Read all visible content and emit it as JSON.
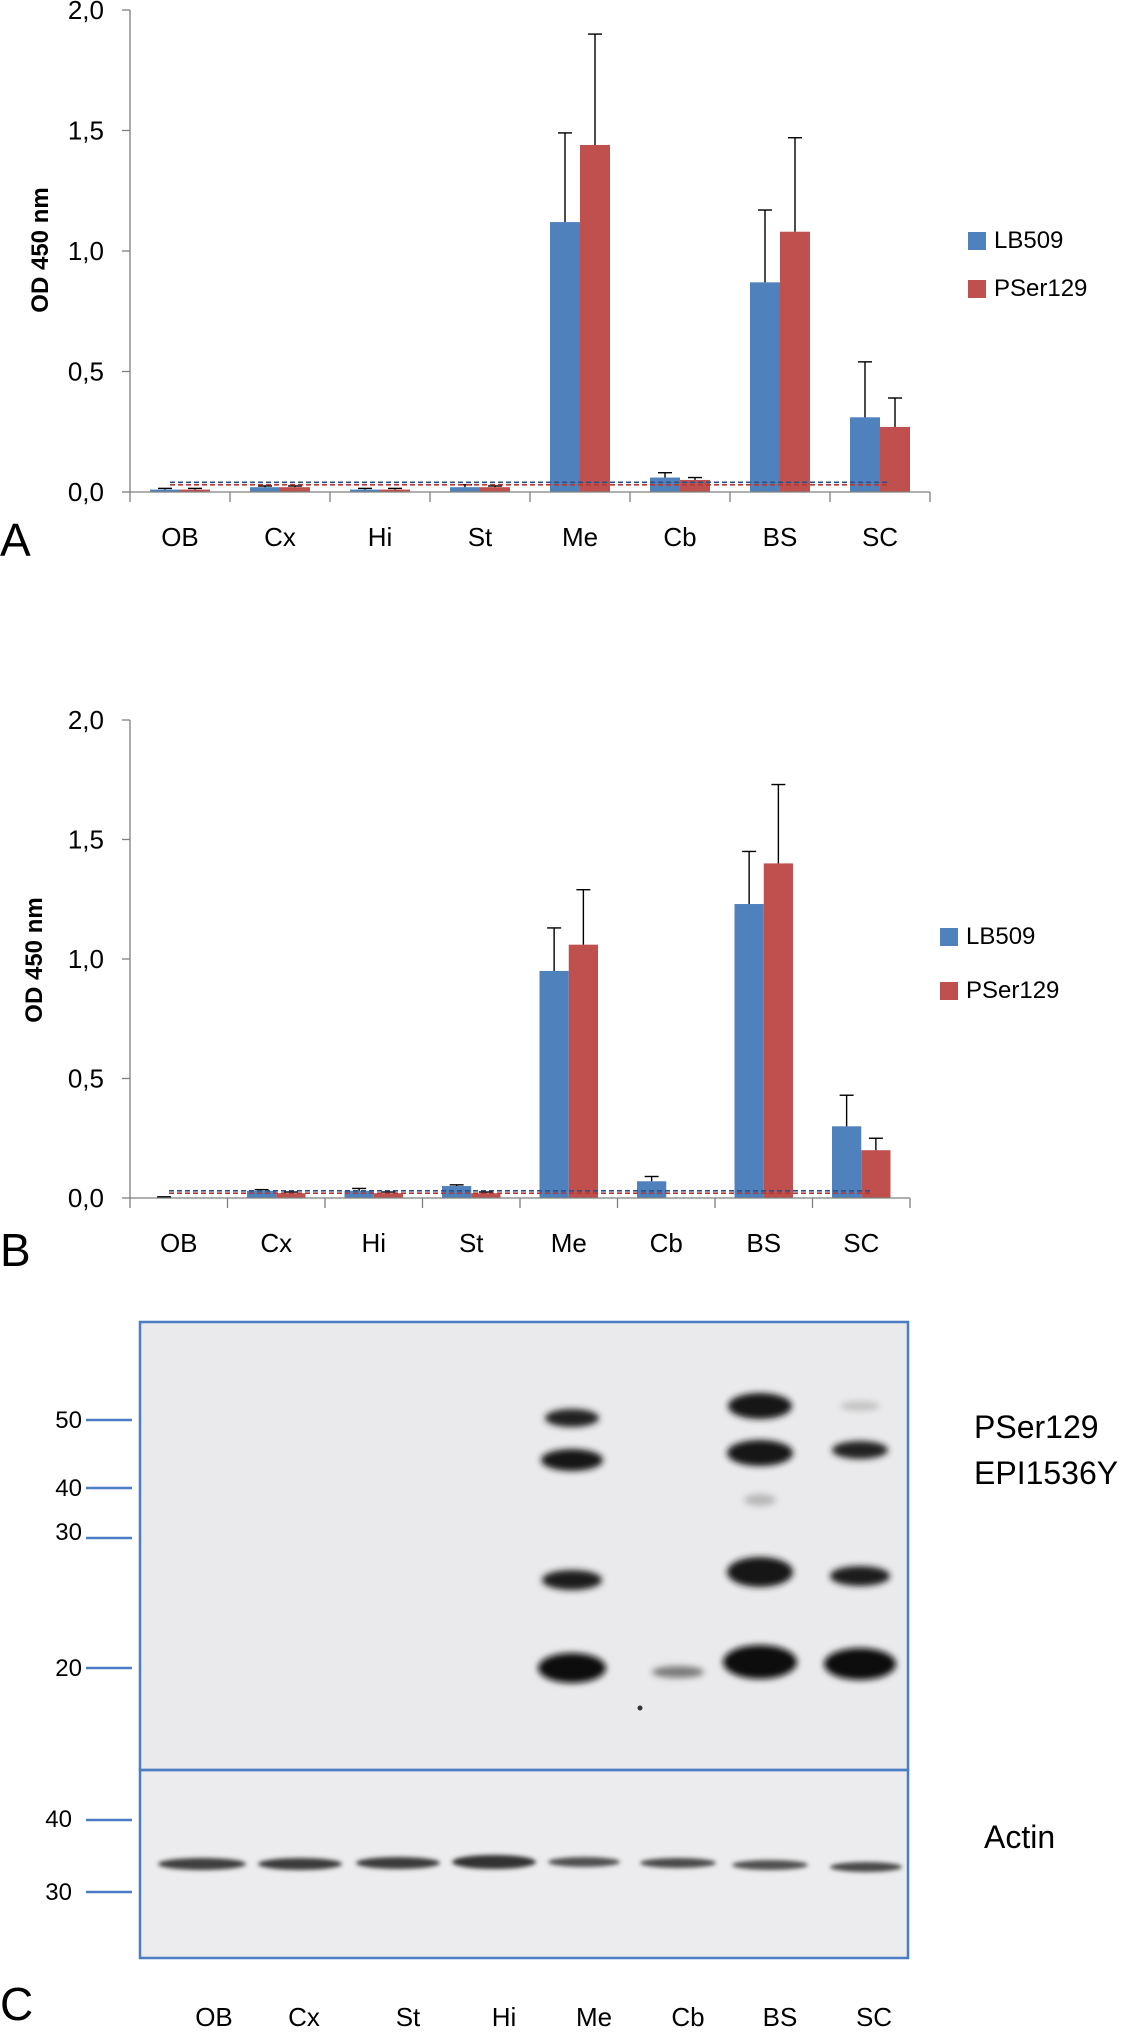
{
  "colors": {
    "lb509": "#4f81bd",
    "pser129": "#c0504d",
    "axis": "#808080",
    "blot_border": "#4a7dc4",
    "blot_background": "#ececee",
    "band": "#1a1a1a"
  },
  "chart_data": [
    {
      "panel": "A",
      "type": "bar",
      "ylabel": "OD 450 nm",
      "ylim": [
        0,
        2.0
      ],
      "yticks": [
        "0,0",
        "0,5",
        "1,0",
        "1,5",
        "2,0"
      ],
      "ytick_values": [
        0,
        0.5,
        1.0,
        1.5,
        2.0
      ],
      "categories": [
        "OB",
        "Cx",
        "Hi",
        "St",
        "Me",
        "Cb",
        "BS",
        "SC"
      ],
      "series": [
        {
          "name": "LB509",
          "values": [
            0.01,
            0.02,
            0.01,
            0.02,
            1.12,
            0.06,
            0.87,
            0.31
          ],
          "errors": [
            0.005,
            0.005,
            0.005,
            0.01,
            0.37,
            0.02,
            0.3,
            0.23
          ]
        },
        {
          "name": "PSer129",
          "values": [
            0.01,
            0.02,
            0.01,
            0.02,
            1.44,
            0.05,
            1.08,
            0.27
          ],
          "errors": [
            0.005,
            0.005,
            0.005,
            0.005,
            0.46,
            0.01,
            0.39,
            0.12
          ]
        }
      ],
      "baselines": [
        0.03,
        0.04
      ],
      "legend": "right"
    },
    {
      "panel": "B",
      "type": "bar",
      "ylabel": "OD 450 nm",
      "ylim": [
        0,
        2.0
      ],
      "yticks": [
        "0,0",
        "0,5",
        "1,0",
        "1,5",
        "2,0"
      ],
      "ytick_values": [
        0,
        0.5,
        1.0,
        1.5,
        2.0
      ],
      "categories": [
        "OB",
        "Cx",
        "Hi",
        "St",
        "Me",
        "Cb",
        "BS",
        "SC"
      ],
      "series": [
        {
          "name": "LB509",
          "values": [
            0.0,
            0.03,
            0.03,
            0.05,
            0.95,
            0.07,
            1.23,
            0.3
          ],
          "errors": [
            0.005,
            0.005,
            0.01,
            0.005,
            0.18,
            0.02,
            0.22,
            0.13
          ]
        },
        {
          "name": "PSer129",
          "values": [
            0.0,
            0.02,
            0.02,
            0.02,
            1.06,
            0.0,
            1.4,
            0.2
          ],
          "errors": [
            0.0,
            0.005,
            0.005,
            0.005,
            0.23,
            0.0,
            0.33,
            0.05
          ]
        }
      ],
      "baselines": [
        0.02,
        0.03
      ],
      "legend": "right"
    }
  ],
  "blot": {
    "panel": "C",
    "upper_labels": [
      "PSer129",
      "EPI1536Y"
    ],
    "lower_label": "Actin",
    "upper_markers": [
      "50",
      "40",
      "30",
      "20"
    ],
    "lower_markers": [
      "40",
      "30"
    ],
    "lanes": [
      "OB",
      "Cx",
      "St",
      "Hi",
      "Me",
      "Cb",
      "BS",
      "SC"
    ]
  }
}
